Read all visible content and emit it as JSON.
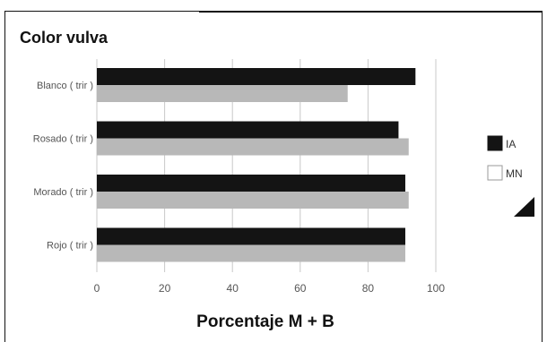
{
  "chart_data": {
    "type": "bar",
    "orientation": "horizontal",
    "title": "Color vulva",
    "xlabel": "Porcentaje M + B",
    "ylabel": "",
    "xlim": [
      0,
      100
    ],
    "xticks": [
      0,
      20,
      40,
      60,
      80,
      100
    ],
    "categories": [
      "Blanco ( trir )",
      "Rosado ( trir )",
      "Morado ( trir )",
      "Rojo ( trir )"
    ],
    "series": [
      {
        "name": "IA",
        "color": "#141414",
        "values": [
          94,
          89,
          91,
          91
        ]
      },
      {
        "name": "MN",
        "color": "#b8b8b8",
        "values": [
          74,
          92,
          92,
          91
        ]
      }
    ],
    "grid": "vertical",
    "legend": "right"
  }
}
